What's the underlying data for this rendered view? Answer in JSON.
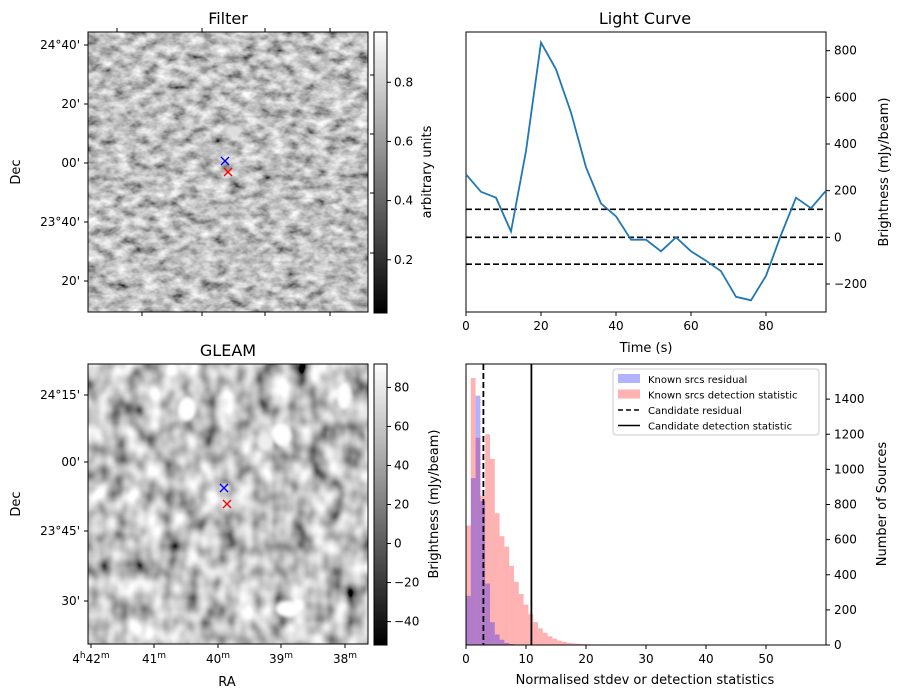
{
  "chart_data": [
    {
      "type": "heatmap",
      "panel": "filter",
      "title": "Filter",
      "ylabel": "Dec",
      "colormap": "gray",
      "yticks": [
        "24°40'",
        "20'",
        "00'",
        "23°40'",
        "20'"
      ],
      "colorbar": {
        "label": "arbitrary units",
        "range": [
          0.02,
          0.97
        ],
        "ticks": [
          "0.2",
          "0.4",
          "0.6",
          "0.8"
        ],
        "tick_values": [
          0.2,
          0.4,
          0.6,
          0.8
        ]
      },
      "markers": [
        {
          "symbol": "x",
          "color": "#0000ff",
          "name": "candidate"
        },
        {
          "symbol": "x",
          "color": "#ff0000",
          "name": "candidate-offset"
        }
      ]
    },
    {
      "type": "line",
      "panel": "light-curve",
      "title": "Light Curve",
      "xlabel": "Time (s)",
      "ylabel": "Brightness (mJy/beam)",
      "xlim": [
        0,
        96
      ],
      "ylim": [
        -320,
        880
      ],
      "xticks": [
        0,
        20,
        40,
        60,
        80
      ],
      "yticks": [
        -200,
        0,
        200,
        400,
        600,
        800
      ],
      "line_color": "#1f77b4",
      "x": [
        0,
        4,
        8,
        12,
        16,
        20,
        24,
        28,
        32,
        36,
        40,
        44,
        48,
        52,
        56,
        60,
        64,
        68,
        72,
        76,
        80,
        84,
        88,
        92,
        96
      ],
      "values": [
        270,
        195,
        170,
        25,
        370,
        835,
        720,
        535,
        300,
        145,
        90,
        -10,
        -10,
        -60,
        0,
        -60,
        -100,
        -145,
        -255,
        -270,
        -165,
        10,
        170,
        125,
        200
      ],
      "hlines": [
        {
          "y": 120,
          "style": "dashed"
        },
        {
          "y": 0,
          "style": "dashed"
        },
        {
          "y": -115,
          "style": "dashed"
        }
      ]
    },
    {
      "type": "heatmap",
      "panel": "gleam",
      "title": "GLEAM",
      "xlabel": "RA",
      "ylabel": "Dec",
      "colormap": "gray",
      "xticks": [
        {
          "h": "4",
          "m": "42"
        },
        {
          "h": "",
          "m": "41"
        },
        {
          "h": "",
          "m": "40"
        },
        {
          "h": "",
          "m": "39"
        },
        {
          "h": "",
          "m": "38"
        }
      ],
      "yticks": [
        "24°15'",
        "00'",
        "23°45'",
        "30'"
      ],
      "colorbar": {
        "label": "Brightness (mJy/beam)",
        "range": [
          -52,
          92
        ],
        "ticks": [
          "−40",
          "−20",
          "0",
          "20",
          "40",
          "60",
          "80"
        ],
        "tick_values": [
          -40,
          -20,
          0,
          20,
          40,
          60,
          80
        ]
      },
      "markers": [
        {
          "symbol": "x",
          "color": "#0000ff",
          "name": "candidate"
        },
        {
          "symbol": "x",
          "color": "#ff0000",
          "name": "candidate-offset"
        }
      ]
    },
    {
      "type": "bar",
      "panel": "histogram",
      "xlabel": "Normalised stdev or detection statistics",
      "ylabel": "Number of Sources",
      "xlim": [
        0,
        60
      ],
      "ylim": [
        0,
        1600
      ],
      "xticks": [
        0,
        10,
        20,
        30,
        40,
        50
      ],
      "yticks": [
        0,
        200,
        400,
        600,
        800,
        1000,
        1200,
        1400
      ],
      "bin_width": 0.8,
      "series": [
        {
          "name": "Known srcs residual",
          "color": "#0000ff",
          "alpha": 0.3,
          "bin_start": 0,
          "values": [
            280,
            950,
            1420,
            820,
            350,
            130,
            60,
            30,
            12,
            5,
            2
          ]
        },
        {
          "name": "Known srcs detection statistic",
          "color": "#ff0000",
          "alpha": 0.3,
          "bin_start": 0,
          "values": [
            680,
            1520,
            1180,
            850,
            1200,
            1060,
            750,
            620,
            560,
            450,
            360,
            290,
            230,
            175,
            130,
            95,
            70,
            50,
            36,
            25,
            18,
            12,
            9,
            7,
            5,
            4,
            3,
            3,
            2,
            2,
            2,
            2,
            1,
            1,
            1,
            1,
            1,
            1,
            1,
            1,
            1,
            1,
            1,
            1,
            1,
            1,
            1,
            1,
            1,
            1,
            1,
            1,
            1,
            1,
            1,
            1,
            1,
            1,
            1,
            1,
            1,
            1,
            1,
            1,
            1,
            1,
            1,
            1,
            1,
            1,
            1
          ]
        }
      ],
      "vlines": [
        {
          "name": "Candidate residual",
          "x": 2.9,
          "style": "dashed"
        },
        {
          "name": "Candidate detection statistic",
          "x": 10.9,
          "style": "solid"
        }
      ]
    }
  ]
}
